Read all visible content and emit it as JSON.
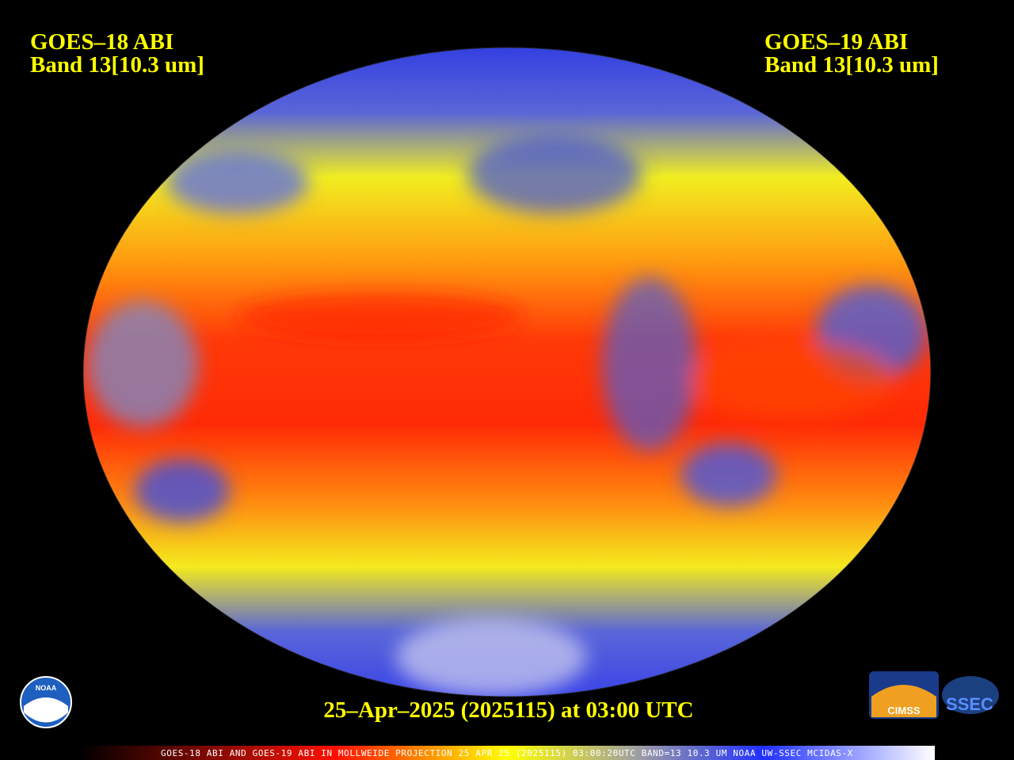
{
  "header": {
    "left": {
      "satellite": "GOES–18 ABI",
      "band": "Band 13[10.3 um]"
    },
    "right": {
      "satellite": "GOES–19 ABI",
      "band": "Band 13[10.3 um]"
    }
  },
  "timestamp": "25–Apr–2025 (2025115) at 03:00 UTC",
  "footer": "GOES-18 ABI AND GOES-19 ABI IN MOLLWEIDE PROJECTION 25 APR 25 (2025115) 03:00:20UTC BAND=13 10.3 UM NOAA UW-SSEC MCIDAS-X",
  "logos": {
    "noaa": "NOAA",
    "cimss": "CIMSS",
    "ssec": "SSEC"
  }
}
